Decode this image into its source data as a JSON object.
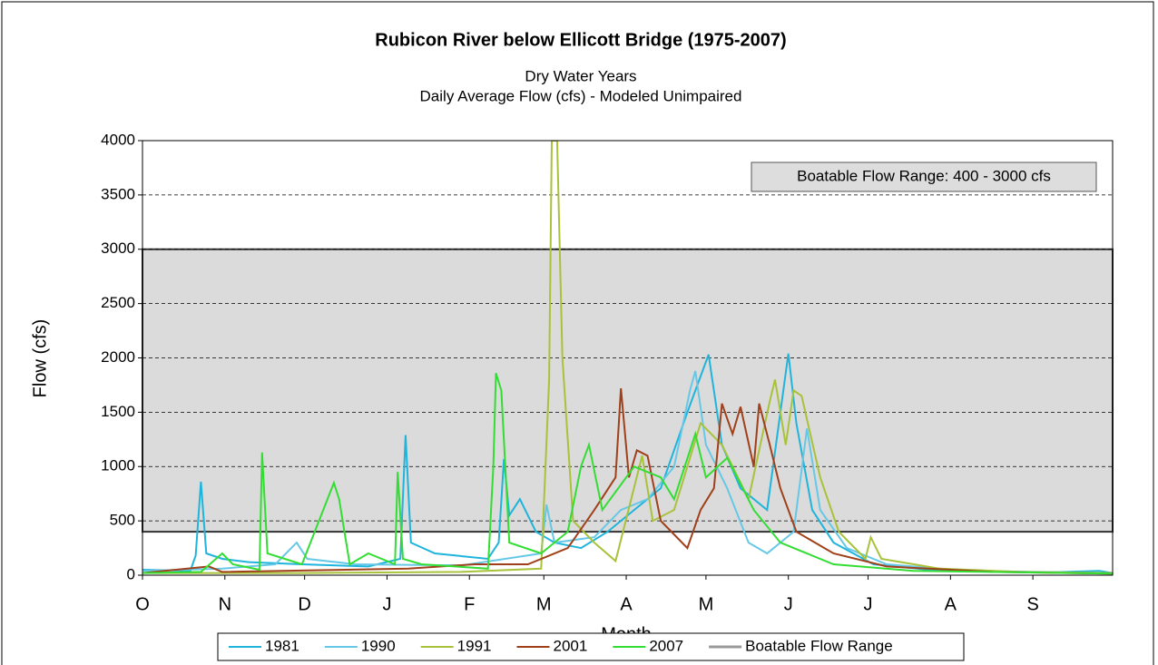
{
  "chart_data": {
    "type": "line",
    "title": "Rubicon River below Ellicott Bridge (1975-2007)",
    "subtitle": [
      "Dry Water Years",
      "Daily Average Flow (cfs) - Modeled Unimpaired"
    ],
    "x_label": "Month",
    "y_label": "Flow (cfs)",
    "annotation": "Boatable Flow Range: 400 - 3000 cfs",
    "xlim": [
      0,
      365
    ],
    "xticks": [
      {
        "value": 0,
        "label": "O"
      },
      {
        "value": 31,
        "label": "N"
      },
      {
        "value": 61,
        "label": "D"
      },
      {
        "value": 92,
        "label": "J"
      },
      {
        "value": 123,
        "label": "F"
      },
      {
        "value": 151,
        "label": "M"
      },
      {
        "value": 182,
        "label": "A"
      },
      {
        "value": 212,
        "label": "M"
      },
      {
        "value": 243,
        "label": "J"
      },
      {
        "value": 273,
        "label": "J"
      },
      {
        "value": 304,
        "label": "A"
      },
      {
        "value": 335,
        "label": "S"
      }
    ],
    "ylim": [
      0,
      4000
    ],
    "yticks": [
      0,
      500,
      1000,
      1500,
      2000,
      2500,
      3000,
      3500,
      4000
    ],
    "grid": true,
    "band": {
      "name": "Boatable Flow Range",
      "range": [
        400,
        3000
      ],
      "color": "#999999"
    },
    "series": [
      {
        "name": "1981",
        "color": "#1fb4dc",
        "x": [
          0,
          18,
          20,
          22,
          24,
          30,
          40,
          60,
          85,
          97,
          99,
          101,
          110,
          130,
          134,
          136,
          138,
          142,
          148,
          155,
          165,
          175,
          185,
          195,
          205,
          213,
          218,
          225,
          235,
          240,
          243,
          246,
          252,
          260,
          275,
          300,
          340,
          360,
          365
        ],
        "values": [
          50,
          40,
          180,
          860,
          200,
          150,
          120,
          100,
          80,
          150,
          1290,
          300,
          200,
          150,
          300,
          1070,
          550,
          700,
          400,
          300,
          250,
          400,
          600,
          800,
          1500,
          2030,
          1200,
          800,
          600,
          1500,
          2040,
          1400,
          600,
          300,
          100,
          40,
          25,
          40,
          20
        ]
      },
      {
        "name": "1990",
        "color": "#66c8e6",
        "x": [
          0,
          30,
          50,
          58,
          62,
          80,
          120,
          150,
          152,
          155,
          170,
          180,
          190,
          200,
          206,
          208,
          212,
          220,
          228,
          235,
          245,
          250,
          255,
          265,
          280,
          310,
          365
        ],
        "values": [
          40,
          60,
          100,
          300,
          150,
          100,
          90,
          200,
          650,
          300,
          350,
          600,
          700,
          1000,
          1700,
          1880,
          1200,
          800,
          300,
          200,
          400,
          1350,
          600,
          250,
          100,
          40,
          20
        ]
      },
      {
        "name": "1991",
        "color": "#a8c23a",
        "x": [
          0,
          60,
          120,
          150,
          153,
          154,
          156,
          158,
          162,
          170,
          178,
          188,
          192,
          200,
          210,
          218,
          228,
          236,
          238,
          242,
          245,
          248,
          255,
          262,
          272,
          274,
          278,
          300,
          330,
          365
        ],
        "values": [
          20,
          20,
          30,
          60,
          1800,
          4000,
          4000,
          2000,
          500,
          300,
          130,
          1100,
          500,
          600,
          1400,
          1200,
          700,
          1600,
          1800,
          1200,
          1700,
          1650,
          900,
          400,
          150,
          350,
          150,
          60,
          30,
          20
        ]
      },
      {
        "name": "2001",
        "color": "#a0401a",
        "x": [
          0,
          25,
          30,
          100,
          125,
          145,
          160,
          170,
          178,
          180,
          183,
          186,
          190,
          195,
          205,
          210,
          215,
          218,
          222,
          225,
          230,
          232,
          236,
          240,
          246,
          260,
          280,
          320,
          365
        ],
        "values": [
          20,
          80,
          30,
          60,
          100,
          100,
          250,
          600,
          900,
          1720,
          900,
          1150,
          1100,
          500,
          250,
          600,
          800,
          1580,
          1300,
          1550,
          1000,
          1580,
          1200,
          800,
          400,
          200,
          80,
          30,
          15
        ]
      },
      {
        "name": "2007",
        "color": "#33dd33",
        "x": [
          0,
          22,
          30,
          34,
          44,
          45,
          47,
          60,
          72,
          74,
          78,
          85,
          95,
          96,
          98,
          105,
          130,
          132,
          133,
          135,
          138,
          150,
          160,
          165,
          168,
          173,
          185,
          195,
          200,
          208,
          212,
          220,
          230,
          240,
          260,
          290,
          365
        ],
        "values": [
          20,
          30,
          200,
          100,
          50,
          1130,
          200,
          100,
          850,
          700,
          100,
          200,
          100,
          950,
          150,
          100,
          60,
          1000,
          1860,
          1700,
          300,
          200,
          400,
          1000,
          1200,
          600,
          1000,
          900,
          700,
          1300,
          900,
          1080,
          600,
          300,
          100,
          40,
          15
        ]
      }
    ]
  }
}
